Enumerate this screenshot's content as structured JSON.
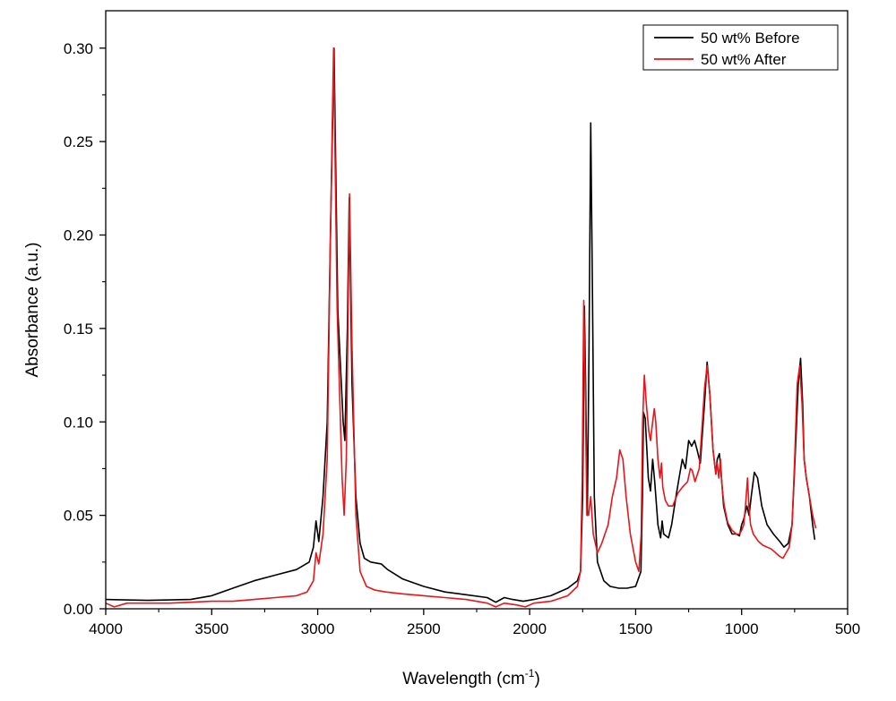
{
  "chart_data": {
    "type": "line",
    "xlabel": "Wavelength (cm",
    "xlabel_sup": "-1",
    "xlabel_close": ")",
    "ylabel": "Absorbance (a.u.)",
    "xlim": [
      4000,
      500
    ],
    "ylim": [
      0,
      0.32
    ],
    "x_reversed": true,
    "grid": false,
    "legend_position": "top-right",
    "x_ticks": [
      "4000",
      "3500",
      "3000",
      "2500",
      "2000",
      "1500",
      "1000",
      "500"
    ],
    "y_ticks": [
      "0.00",
      "0.05",
      "0.10",
      "0.15",
      "0.20",
      "0.25",
      "0.30"
    ],
    "series": [
      {
        "name": "50 wt% Before",
        "color": "#000000",
        "points": [
          [
            4000,
            0.005
          ],
          [
            3800,
            0.0045
          ],
          [
            3600,
            0.005
          ],
          [
            3500,
            0.007
          ],
          [
            3400,
            0.011
          ],
          [
            3300,
            0.015
          ],
          [
            3200,
            0.018
          ],
          [
            3100,
            0.021
          ],
          [
            3040,
            0.025
          ],
          [
            3020,
            0.033
          ],
          [
            3008,
            0.047
          ],
          [
            2995,
            0.036
          ],
          [
            2975,
            0.06
          ],
          [
            2955,
            0.1
          ],
          [
            2940,
            0.2
          ],
          [
            2923,
            0.3
          ],
          [
            2905,
            0.16
          ],
          [
            2880,
            0.1
          ],
          [
            2872,
            0.09
          ],
          [
            2860,
            0.15
          ],
          [
            2851,
            0.22
          ],
          [
            2838,
            0.12
          ],
          [
            2820,
            0.06
          ],
          [
            2800,
            0.035
          ],
          [
            2780,
            0.027
          ],
          [
            2750,
            0.025
          ],
          [
            2700,
            0.024
          ],
          [
            2670,
            0.021
          ],
          [
            2600,
            0.016
          ],
          [
            2500,
            0.012
          ],
          [
            2400,
            0.009
          ],
          [
            2300,
            0.0075
          ],
          [
            2200,
            0.006
          ],
          [
            2160,
            0.0035
          ],
          [
            2120,
            0.006
          ],
          [
            2080,
            0.005
          ],
          [
            2030,
            0.004
          ],
          [
            1980,
            0.005
          ],
          [
            1900,
            0.007
          ],
          [
            1820,
            0.011
          ],
          [
            1775,
            0.015
          ],
          [
            1760,
            0.02
          ],
          [
            1750,
            0.06
          ],
          [
            1742,
            0.162
          ],
          [
            1736,
            0.12
          ],
          [
            1728,
            0.05
          ],
          [
            1720,
            0.14
          ],
          [
            1712,
            0.26
          ],
          [
            1704,
            0.17
          ],
          [
            1695,
            0.06
          ],
          [
            1680,
            0.025
          ],
          [
            1650,
            0.015
          ],
          [
            1620,
            0.012
          ],
          [
            1580,
            0.011
          ],
          [
            1540,
            0.011
          ],
          [
            1500,
            0.012
          ],
          [
            1475,
            0.02
          ],
          [
            1468,
            0.06
          ],
          [
            1463,
            0.105
          ],
          [
            1455,
            0.102
          ],
          [
            1440,
            0.07
          ],
          [
            1430,
            0.063
          ],
          [
            1420,
            0.08
          ],
          [
            1410,
            0.068
          ],
          [
            1395,
            0.045
          ],
          [
            1382,
            0.038
          ],
          [
            1375,
            0.047
          ],
          [
            1368,
            0.04
          ],
          [
            1345,
            0.038
          ],
          [
            1330,
            0.045
          ],
          [
            1310,
            0.06
          ],
          [
            1295,
            0.07
          ],
          [
            1280,
            0.08
          ],
          [
            1265,
            0.075
          ],
          [
            1250,
            0.09
          ],
          [
            1236,
            0.087
          ],
          [
            1222,
            0.09
          ],
          [
            1210,
            0.085
          ],
          [
            1195,
            0.078
          ],
          [
            1175,
            0.11
          ],
          [
            1163,
            0.132
          ],
          [
            1150,
            0.115
          ],
          [
            1135,
            0.085
          ],
          [
            1122,
            0.072
          ],
          [
            1115,
            0.08
          ],
          [
            1105,
            0.083
          ],
          [
            1095,
            0.07
          ],
          [
            1085,
            0.055
          ],
          [
            1065,
            0.045
          ],
          [
            1045,
            0.04
          ],
          [
            1025,
            0.04
          ],
          [
            1010,
            0.039
          ],
          [
            1000,
            0.045
          ],
          [
            990,
            0.048
          ],
          [
            975,
            0.055
          ],
          [
            965,
            0.05
          ],
          [
            955,
            0.06
          ],
          [
            940,
            0.073
          ],
          [
            925,
            0.07
          ],
          [
            905,
            0.055
          ],
          [
            880,
            0.045
          ],
          [
            850,
            0.04
          ],
          [
            820,
            0.036
          ],
          [
            800,
            0.033
          ],
          [
            780,
            0.035
          ],
          [
            762,
            0.045
          ],
          [
            748,
            0.08
          ],
          [
            733,
            0.12
          ],
          [
            722,
            0.134
          ],
          [
            712,
            0.11
          ],
          [
            705,
            0.08
          ],
          [
            695,
            0.07
          ],
          [
            680,
            0.06
          ],
          [
            665,
            0.045
          ],
          [
            655,
            0.037
          ]
        ]
      },
      {
        "name": "50 wt% After",
        "color": "#e8151b",
        "points": [
          [
            4000,
            0.003
          ],
          [
            3960,
            0.001
          ],
          [
            3900,
            0.003
          ],
          [
            3800,
            0.003
          ],
          [
            3700,
            0.003
          ],
          [
            3600,
            0.0035
          ],
          [
            3500,
            0.004
          ],
          [
            3400,
            0.004
          ],
          [
            3300,
            0.005
          ],
          [
            3200,
            0.006
          ],
          [
            3100,
            0.007
          ],
          [
            3050,
            0.009
          ],
          [
            3020,
            0.015
          ],
          [
            3008,
            0.03
          ],
          [
            2995,
            0.024
          ],
          [
            2975,
            0.04
          ],
          [
            2955,
            0.08
          ],
          [
            2940,
            0.2
          ],
          [
            2925,
            0.3
          ],
          [
            2908,
            0.16
          ],
          [
            2885,
            0.07
          ],
          [
            2875,
            0.05
          ],
          [
            2865,
            0.08
          ],
          [
            2850,
            0.222
          ],
          [
            2838,
            0.14
          ],
          [
            2820,
            0.05
          ],
          [
            2800,
            0.02
          ],
          [
            2770,
            0.012
          ],
          [
            2730,
            0.01
          ],
          [
            2680,
            0.009
          ],
          [
            2600,
            0.008
          ],
          [
            2500,
            0.007
          ],
          [
            2400,
            0.006
          ],
          [
            2300,
            0.005
          ],
          [
            2200,
            0.003
          ],
          [
            2160,
            0.001
          ],
          [
            2120,
            0.003
          ],
          [
            2060,
            0.002
          ],
          [
            2020,
            0.001
          ],
          [
            1980,
            0.003
          ],
          [
            1900,
            0.004
          ],
          [
            1820,
            0.007
          ],
          [
            1775,
            0.012
          ],
          [
            1760,
            0.02
          ],
          [
            1752,
            0.07
          ],
          [
            1745,
            0.165
          ],
          [
            1738,
            0.12
          ],
          [
            1730,
            0.05
          ],
          [
            1722,
            0.05
          ],
          [
            1712,
            0.06
          ],
          [
            1700,
            0.04
          ],
          [
            1680,
            0.03
          ],
          [
            1660,
            0.035
          ],
          [
            1630,
            0.045
          ],
          [
            1610,
            0.06
          ],
          [
            1590,
            0.07
          ],
          [
            1575,
            0.085
          ],
          [
            1560,
            0.08
          ],
          [
            1545,
            0.06
          ],
          [
            1525,
            0.04
          ],
          [
            1500,
            0.025
          ],
          [
            1485,
            0.02
          ],
          [
            1474,
            0.04
          ],
          [
            1467,
            0.1
          ],
          [
            1459,
            0.125
          ],
          [
            1450,
            0.11
          ],
          [
            1438,
            0.095
          ],
          [
            1430,
            0.09
          ],
          [
            1420,
            0.1
          ],
          [
            1412,
            0.107
          ],
          [
            1405,
            0.1
          ],
          [
            1395,
            0.08
          ],
          [
            1385,
            0.07
          ],
          [
            1378,
            0.078
          ],
          [
            1372,
            0.065
          ],
          [
            1360,
            0.058
          ],
          [
            1345,
            0.055
          ],
          [
            1325,
            0.055
          ],
          [
            1300,
            0.062
          ],
          [
            1280,
            0.065
          ],
          [
            1255,
            0.068
          ],
          [
            1242,
            0.075
          ],
          [
            1233,
            0.074
          ],
          [
            1220,
            0.068
          ],
          [
            1200,
            0.075
          ],
          [
            1185,
            0.1
          ],
          [
            1175,
            0.118
          ],
          [
            1163,
            0.13
          ],
          [
            1150,
            0.115
          ],
          [
            1135,
            0.085
          ],
          [
            1122,
            0.072
          ],
          [
            1115,
            0.078
          ],
          [
            1108,
            0.07
          ],
          [
            1100,
            0.08
          ],
          [
            1092,
            0.065
          ],
          [
            1082,
            0.055
          ],
          [
            1065,
            0.046
          ],
          [
            1045,
            0.042
          ],
          [
            1025,
            0.04
          ],
          [
            1010,
            0.04
          ],
          [
            1000,
            0.042
          ],
          [
            990,
            0.045
          ],
          [
            982,
            0.055
          ],
          [
            972,
            0.07
          ],
          [
            966,
            0.055
          ],
          [
            958,
            0.045
          ],
          [
            945,
            0.04
          ],
          [
            920,
            0.036
          ],
          [
            900,
            0.034
          ],
          [
            880,
            0.033
          ],
          [
            860,
            0.032
          ],
          [
            840,
            0.03
          ],
          [
            820,
            0.028
          ],
          [
            805,
            0.027
          ],
          [
            790,
            0.03
          ],
          [
            775,
            0.033
          ],
          [
            762,
            0.045
          ],
          [
            750,
            0.08
          ],
          [
            738,
            0.12
          ],
          [
            726,
            0.13
          ],
          [
            715,
            0.11
          ],
          [
            705,
            0.08
          ],
          [
            695,
            0.07
          ],
          [
            680,
            0.06
          ],
          [
            665,
            0.05
          ],
          [
            650,
            0.043
          ]
        ]
      }
    ]
  }
}
